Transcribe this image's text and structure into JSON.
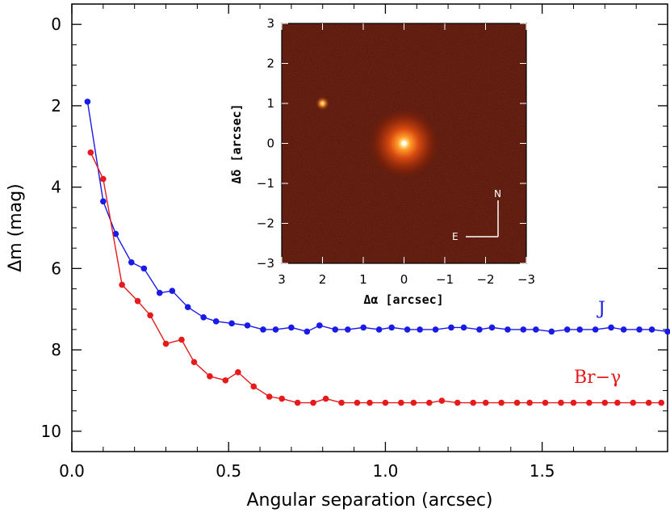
{
  "chart_data": [
    {
      "type": "line",
      "xlabel": "Angular separation (arcsec)",
      "ylabel": "Δm (mag)",
      "xlim": [
        0.0,
        1.9
      ],
      "ylim": [
        10.5,
        -0.5
      ],
      "y_inverted": true,
      "xticks": [
        "0.0",
        "0.5",
        "1.0",
        "1.5"
      ],
      "xtick_values": [
        0.0,
        0.5,
        1.0,
        1.5
      ],
      "yticks": [
        "0",
        "2",
        "4",
        "6",
        "8",
        "10"
      ],
      "ytick_values": [
        0,
        2,
        4,
        6,
        8,
        10
      ],
      "grid": false,
      "series": [
        {
          "name": "J",
          "color": "#1a1ae6",
          "x": [
            0.05,
            0.1,
            0.14,
            0.19,
            0.23,
            0.28,
            0.32,
            0.37,
            0.42,
            0.46,
            0.51,
            0.56,
            0.61,
            0.65,
            0.7,
            0.75,
            0.79,
            0.84,
            0.88,
            0.93,
            0.98,
            1.02,
            1.07,
            1.11,
            1.16,
            1.21,
            1.25,
            1.3,
            1.34,
            1.39,
            1.44,
            1.48,
            1.53,
            1.58,
            1.62,
            1.67,
            1.72,
            1.76,
            1.81,
            1.85,
            1.9
          ],
          "y": [
            1.9,
            4.35,
            5.15,
            5.85,
            6.0,
            6.6,
            6.55,
            6.95,
            7.2,
            7.3,
            7.35,
            7.4,
            7.5,
            7.5,
            7.45,
            7.55,
            7.4,
            7.5,
            7.5,
            7.45,
            7.5,
            7.45,
            7.5,
            7.5,
            7.5,
            7.45,
            7.45,
            7.5,
            7.45,
            7.5,
            7.5,
            7.5,
            7.55,
            7.5,
            7.5,
            7.5,
            7.45,
            7.5,
            7.5,
            7.5,
            7.55
          ]
        },
        {
          "name": "Br−γ",
          "color": "#e61a1a",
          "x": [
            0.06,
            0.1,
            0.16,
            0.21,
            0.25,
            0.3,
            0.35,
            0.39,
            0.44,
            0.49,
            0.53,
            0.58,
            0.63,
            0.67,
            0.72,
            0.77,
            0.81,
            0.86,
            0.91,
            0.95,
            1.0,
            1.05,
            1.09,
            1.14,
            1.18,
            1.23,
            1.28,
            1.32,
            1.37,
            1.42,
            1.46,
            1.51,
            1.56,
            1.6,
            1.65,
            1.7,
            1.74,
            1.79,
            1.84,
            1.88,
            1.93
          ],
          "y": [
            3.15,
            3.8,
            6.4,
            6.8,
            7.15,
            7.85,
            7.75,
            8.3,
            8.65,
            8.75,
            8.55,
            8.9,
            9.15,
            9.2,
            9.3,
            9.3,
            9.2,
            9.3,
            9.3,
            9.3,
            9.3,
            9.3,
            9.3,
            9.3,
            9.25,
            9.3,
            9.3,
            9.3,
            9.3,
            9.3,
            9.3,
            9.3,
            9.3,
            9.3,
            9.3,
            9.3,
            9.3,
            9.3,
            9.3,
            9.3,
            9.3
          ]
        }
      ]
    },
    {
      "type": "heatmap",
      "xlabel": "Δα [arcsec]",
      "ylabel": "Δδ [arcsec]",
      "xlim": [
        3,
        -3
      ],
      "ylim": [
        -3,
        3
      ],
      "xticks": [
        "3",
        "2",
        "1",
        "0",
        "−1",
        "−2",
        "−3"
      ],
      "xtick_values": [
        3,
        2,
        1,
        0,
        -1,
        -2,
        -3
      ],
      "yticks": [
        "3",
        "2",
        "1",
        "0",
        "−1",
        "−2",
        "−3"
      ],
      "ytick_values": [
        3,
        2,
        1,
        0,
        -1,
        -2,
        -3
      ],
      "compass": {
        "north": "N",
        "east": "E"
      },
      "sources": [
        {
          "x": 0,
          "y": 0,
          "brightness": "primary"
        },
        {
          "x": 2,
          "y": 1,
          "brightness": "companion"
        }
      ]
    }
  ]
}
